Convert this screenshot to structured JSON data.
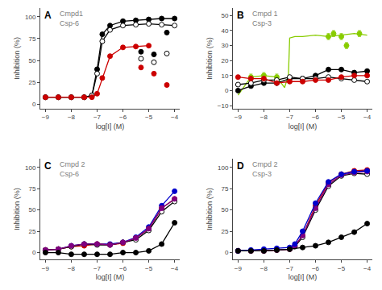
{
  "chart_data": [
    {
      "type": "line",
      "title": "A",
      "annotations": [
        "Cmpd1",
        "Csp-6"
      ],
      "x_label": "log[I] (M)",
      "y_label": "Inhibition (%)",
      "xlim": [
        -9.2,
        -3.8
      ],
      "ylim": [
        -5,
        110
      ],
      "xticks": [
        -9,
        -8,
        -7,
        -6,
        -5,
        -4
      ],
      "yticks": [
        0,
        25,
        50,
        75,
        100
      ],
      "grid": false,
      "series": [
        {
          "type": "line",
          "color": "#000000",
          "marker": "filled",
          "line_style": "solid",
          "x": [
            -9,
            -8.5,
            -8,
            -7.5,
            -7.2,
            -7,
            -6.8,
            -6.5,
            -6,
            -5.5,
            -5,
            -4.5,
            -4
          ],
          "values": [
            8,
            8,
            8,
            8,
            10,
            40,
            80,
            90,
            95,
            96,
            97,
            98,
            98
          ]
        },
        {
          "type": "scatter",
          "color": "#000000",
          "marker": "filled",
          "line_style": "none",
          "x": [
            -5.3,
            -4.8,
            -4.3
          ],
          "values": [
            60,
            57,
            82
          ]
        },
        {
          "type": "line",
          "color": "#000000",
          "marker": "open",
          "line_style": "solid",
          "x": [
            -9,
            -8.5,
            -8,
            -7.5,
            -7.2,
            -7,
            -6.8,
            -6.5,
            -6,
            -5.5,
            -5,
            -4.5,
            -4
          ],
          "values": [
            8,
            8,
            8,
            8,
            10,
            35,
            72,
            85,
            90,
            91,
            92,
            91,
            90
          ]
        },
        {
          "type": "scatter",
          "color": "#000000",
          "marker": "open",
          "line_style": "none",
          "x": [
            -5.3,
            -4.8,
            -4.3
          ],
          "values": [
            52,
            48,
            58
          ]
        },
        {
          "type": "line",
          "color": "#cc0000",
          "marker": "filled",
          "line_style": "solid",
          "x": [
            -9,
            -8.5,
            -8,
            -7.5,
            -7.2,
            -7,
            -6.8,
            -6.5,
            -6,
            -5.5,
            -5
          ],
          "values": [
            8,
            8,
            8,
            8,
            8,
            12,
            30,
            55,
            65,
            66,
            67
          ]
        },
        {
          "type": "scatter",
          "color": "#cc0000",
          "marker": "filled",
          "line_style": "none",
          "x": [
            -5.3,
            -4.8,
            -4.3
          ],
          "values": [
            42,
            35,
            22
          ]
        }
      ]
    },
    {
      "type": "line",
      "title": "B",
      "annotations": [
        "Cmpd 1",
        "Csp-3"
      ],
      "x_label": "log[I] (M)",
      "y_label": "Inhibition (%)",
      "xlim": [
        -9.2,
        -3.8
      ],
      "ylim": [
        -12,
        55
      ],
      "xticks": [
        -9,
        -8,
        -7,
        -6,
        -5,
        -4
      ],
      "yticks": [
        -10,
        0,
        10,
        20,
        30,
        40,
        50
      ],
      "grid": false,
      "series": [
        {
          "type": "line",
          "color": "#88cc00",
          "marker": "none",
          "line_style": "solid",
          "x": [
            -9,
            -8.5,
            -8,
            -7.5,
            -7.2,
            -7.05,
            -7,
            -6.8,
            -6.5,
            -6,
            -5.5,
            -5,
            -4.5,
            -4
          ],
          "values": [
            -3,
            9,
            10,
            9,
            2,
            10,
            35,
            36,
            36,
            37,
            36,
            37,
            38,
            37
          ]
        },
        {
          "type": "scatter",
          "color": "#88cc00",
          "marker": "filled",
          "line_style": "none",
          "x": [
            -8.5,
            -8,
            -7.5,
            -5.5,
            -5.3,
            -5,
            -4.8,
            -4.3
          ],
          "values": [
            9,
            10,
            9,
            36,
            38,
            36,
            30,
            38
          ],
          "errors": [
            2,
            2,
            2,
            2,
            2,
            2,
            2,
            2
          ]
        },
        {
          "type": "line",
          "color": "#000000",
          "marker": "filled",
          "line_style": "solid",
          "x": [
            -9,
            -8.5,
            -8,
            -7.5,
            -7,
            -6.5,
            -6,
            -5.5,
            -5,
            -4.5,
            -4
          ],
          "values": [
            0,
            3,
            5,
            5,
            8,
            8,
            10,
            14,
            14,
            12,
            13
          ]
        },
        {
          "type": "line",
          "color": "#000000",
          "marker": "open",
          "line_style": "solid",
          "x": [
            -9,
            -8.5,
            -8,
            -7.5,
            -7,
            -6.5,
            -6,
            -5.5,
            -5,
            -4.5,
            -4
          ],
          "values": [
            4,
            5,
            7,
            7,
            9,
            8,
            8,
            9,
            8,
            7,
            6
          ]
        },
        {
          "type": "line",
          "color": "#cc0000",
          "marker": "filled",
          "line_style": "solid",
          "x": [
            -9,
            -8.5,
            -8,
            -7.5,
            -7,
            -6.5,
            -6,
            -5.5,
            -5,
            -4.5,
            -4
          ],
          "values": [
            9,
            8,
            8,
            5,
            6,
            6,
            7,
            7,
            9,
            10,
            10
          ]
        }
      ]
    },
    {
      "type": "line",
      "title": "C",
      "annotations": [
        "Cmpd 2",
        "Csp-6"
      ],
      "x_label": "log[I] (M)",
      "y_label": "Inhibition (%)",
      "xlim": [
        -9.2,
        -3.8
      ],
      "ylim": [
        -8,
        110
      ],
      "xticks": [
        -9,
        -8,
        -7,
        -6,
        -5,
        -4
      ],
      "yticks": [
        0,
        25,
        50,
        75,
        100
      ],
      "grid": false,
      "series": [
        {
          "type": "line",
          "color": "#0000cc",
          "marker": "filled",
          "line_style": "solid",
          "x": [
            -9,
            -8.5,
            -8,
            -7.5,
            -7,
            -6.5,
            -6,
            -5.5,
            -5,
            -4.5,
            -4
          ],
          "values": [
            3,
            4,
            8,
            10,
            10,
            10,
            12,
            18,
            30,
            55,
            72
          ]
        },
        {
          "type": "line",
          "color": "#cc0000",
          "marker": "filled",
          "line_style": "solid",
          "x": [
            -9,
            -8.5,
            -8,
            -7.5,
            -7,
            -6.5,
            -6,
            -5.5,
            -5,
            -4.5,
            -4
          ],
          "values": [
            3,
            4,
            7,
            8,
            10,
            9,
            11,
            17,
            28,
            52,
            63
          ]
        },
        {
          "type": "line",
          "color": "#000000",
          "marker": "open",
          "line_style": "solid",
          "x": [
            -9,
            -8.5,
            -8,
            -7.5,
            -7,
            -6.5,
            -6,
            -5.5,
            -5,
            -4.5,
            -4
          ],
          "values": [
            3,
            4,
            7,
            10,
            9,
            9,
            12,
            15,
            26,
            48,
            60
          ]
        },
        {
          "type": "line",
          "color": "#800080",
          "marker": "filled",
          "line_style": "solid",
          "x": [
            -9,
            -8.5,
            -8,
            -7.5,
            -7,
            -6.5,
            -6,
            -5.5,
            -5,
            -4.5,
            -4
          ],
          "values": [
            3,
            4,
            8,
            10,
            10,
            9,
            12,
            17,
            28,
            52,
            63
          ]
        },
        {
          "type": "line",
          "color": "#000000",
          "marker": "filled",
          "line_style": "solid",
          "x": [
            -9,
            -8.5,
            -8,
            -7.5,
            -7,
            -6.5,
            -6,
            -5.5,
            -5,
            -4.5,
            -4
          ],
          "values": [
            0,
            0,
            -2,
            -2,
            -2,
            -2,
            0,
            0,
            2,
            10,
            35
          ]
        }
      ]
    },
    {
      "type": "line",
      "title": "D",
      "annotations": [
        "Cmpd 2",
        "Csp-3"
      ],
      "x_label": "log[I] (M)",
      "y_label": "Inhibition (%)",
      "xlim": [
        -9.2,
        -3.8
      ],
      "ylim": [
        -8,
        110
      ],
      "xticks": [
        -9,
        -8,
        -7,
        -6,
        -5,
        -4
      ],
      "yticks": [
        0,
        25,
        50,
        75,
        100
      ],
      "grid": false,
      "series": [
        {
          "type": "line",
          "color": "#cc0000",
          "marker": "filled",
          "line_style": "solid",
          "x": [
            -9,
            -8.5,
            -8,
            -7.5,
            -7,
            -6.8,
            -6.5,
            -6,
            -5.5,
            -5,
            -4.5,
            -4
          ],
          "values": [
            2,
            2,
            2,
            3,
            4,
            8,
            20,
            55,
            82,
            92,
            96,
            97
          ]
        },
        {
          "type": "line",
          "color": "#000000",
          "marker": "open",
          "line_style": "solid",
          "x": [
            -9,
            -8.5,
            -8,
            -7.5,
            -7,
            -6.8,
            -6.5,
            -6,
            -5.5,
            -5,
            -4.5,
            -4
          ],
          "values": [
            2,
            2,
            2,
            3,
            4,
            7,
            18,
            50,
            78,
            90,
            93,
            92
          ]
        },
        {
          "type": "line",
          "color": "#800080",
          "marker": "filled",
          "line_style": "solid",
          "x": [
            -9,
            -8.5,
            -8,
            -7.5,
            -7,
            -6.8,
            -6.5,
            -6,
            -5.5,
            -5,
            -4.5,
            -4
          ],
          "values": [
            2,
            2,
            2,
            3,
            4,
            8,
            20,
            52,
            80,
            91,
            94,
            95
          ]
        },
        {
          "type": "line",
          "color": "#0000cc",
          "marker": "filled",
          "line_style": "solid",
          "x": [
            -9,
            -8.5,
            -8,
            -7.5,
            -7,
            -6.8,
            -6.5,
            -6,
            -5.5,
            -5,
            -4.5,
            -4
          ],
          "values": [
            2,
            3,
            4,
            5,
            6,
            10,
            25,
            58,
            83,
            92,
            95,
            96
          ]
        },
        {
          "type": "line",
          "color": "#000000",
          "marker": "filled",
          "line_style": "solid",
          "x": [
            -9,
            -8.5,
            -8,
            -7.5,
            -7,
            -6.5,
            -6,
            -5.5,
            -5,
            -4.5,
            -4
          ],
          "values": [
            2,
            2,
            2,
            3,
            4,
            6,
            8,
            12,
            18,
            24,
            34
          ]
        }
      ]
    }
  ]
}
